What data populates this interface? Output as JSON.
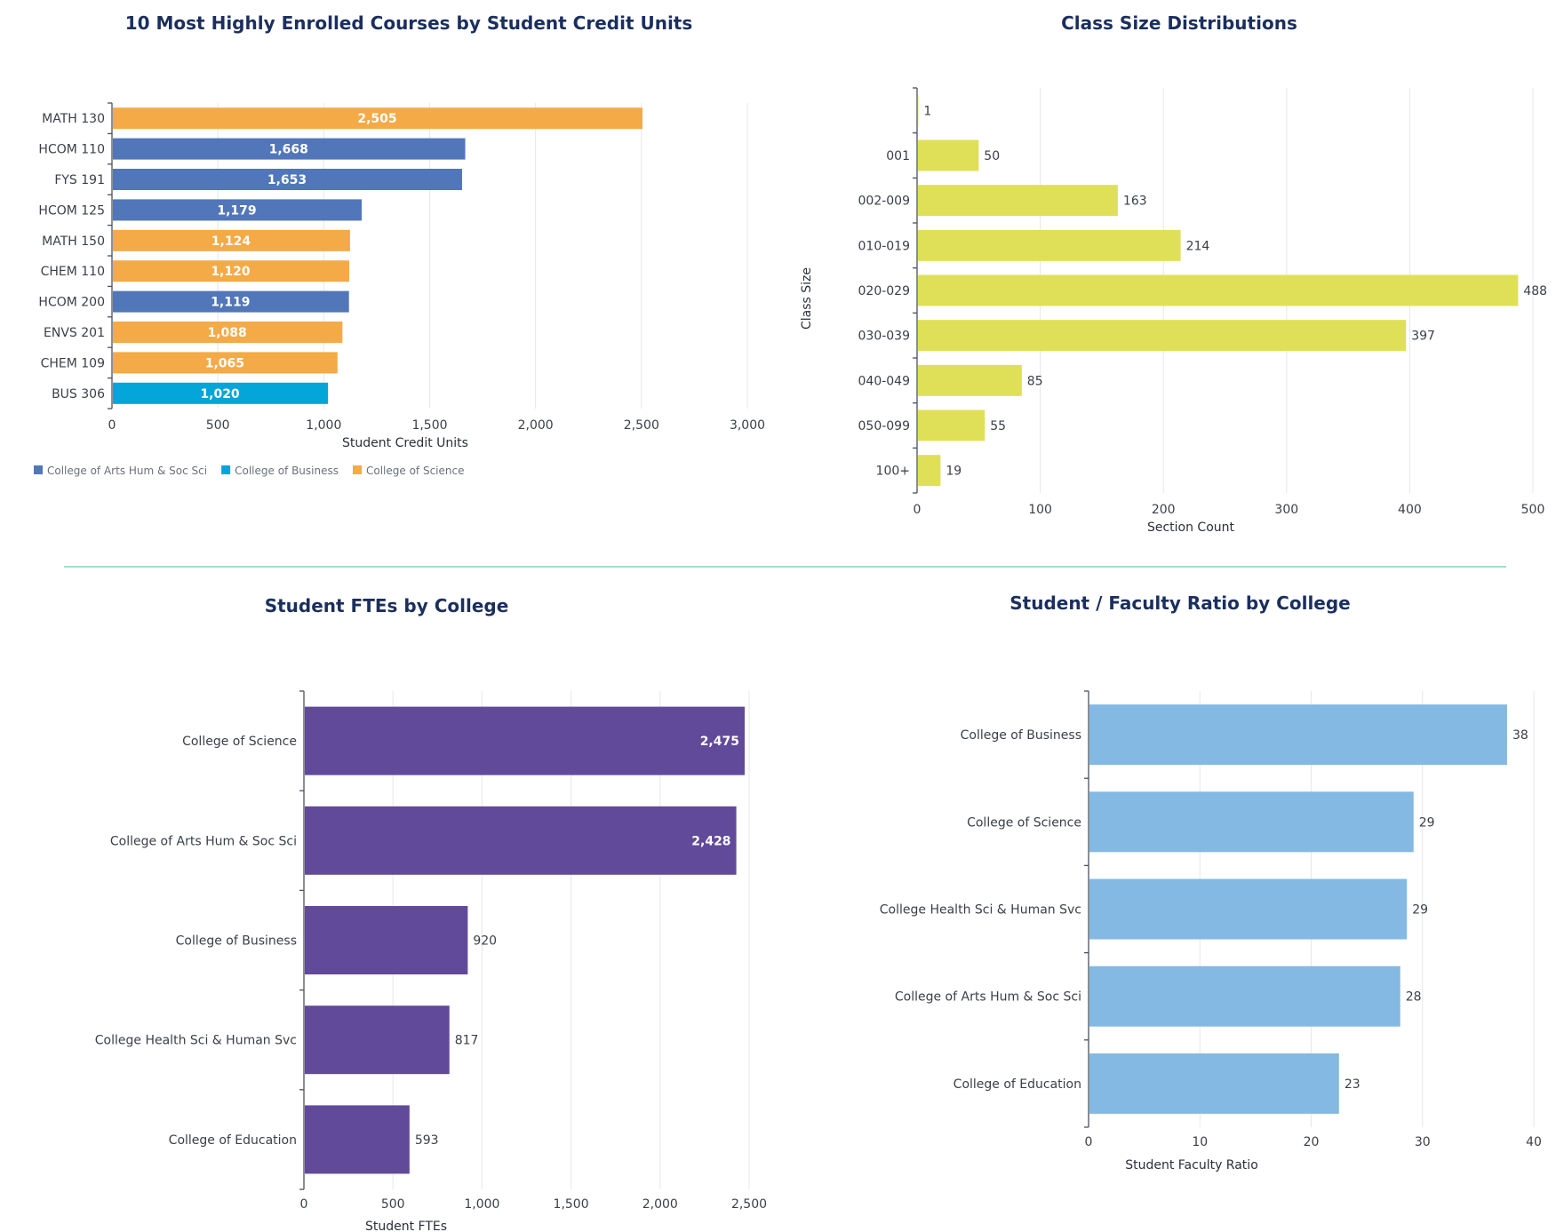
{
  "chart_data": [
    {
      "type": "bar",
      "orientation": "horizontal",
      "title": "10 Most Highly Enrolled Courses by Student Credit Units",
      "xlabel": "Student Credit Units",
      "ylabel": "",
      "xlim": [
        0,
        3000
      ],
      "xticks": [
        "0",
        "500",
        "1,000",
        "1,500",
        "2,000",
        "2,500",
        "3,000"
      ],
      "grid": true,
      "categories": [
        "MATH 130",
        "HCOM 110",
        "FYS 191",
        "HCOM 125",
        "MATH 150",
        "CHEM 110",
        "HCOM 200",
        "ENVS 201",
        "CHEM 109",
        "BUS 306"
      ],
      "values": [
        2505,
        1668,
        1653,
        1179,
        1124,
        1120,
        1119,
        1088,
        1065,
        1020
      ],
      "labels": [
        "2,505",
        "1,668",
        "1,653",
        "1,179",
        "1,124",
        "1,120",
        "1,119",
        "1,088",
        "1,065",
        "1,020"
      ],
      "groups": [
        "College of Science",
        "College of Arts Hum & Soc Sci",
        "College of Arts Hum & Soc Sci",
        "College of Arts Hum & Soc Sci",
        "College of Science",
        "College of Science",
        "College of Arts Hum & Soc Sci",
        "College of Science",
        "College of Science",
        "College of Business"
      ],
      "legend": {
        "placement": "bottom-left",
        "entries": [
          {
            "name": "College of Arts Hum & Soc Sci",
            "color": "#5176b9"
          },
          {
            "name": "College of Business",
            "color": "#04a5d8"
          },
          {
            "name": "College of Science",
            "color": "#f4aa47"
          }
        ]
      }
    },
    {
      "type": "bar",
      "orientation": "horizontal",
      "title": "Class Size Distributions",
      "xlabel": "Section Count",
      "ylabel": "Class Size",
      "xlim": [
        0,
        500
      ],
      "xticks": [
        "0",
        "100",
        "200",
        "300",
        "400",
        "500"
      ],
      "grid": true,
      "categories": [
        "",
        "001",
        "002-009",
        "010-019",
        "020-029",
        "030-039",
        "040-049",
        "050-099",
        "100+"
      ],
      "values": [
        1,
        50,
        163,
        214,
        488,
        397,
        85,
        55,
        19
      ],
      "labels": [
        "1",
        "50",
        "163",
        "214",
        "488",
        "397",
        "85",
        "55",
        "19"
      ],
      "color": "#dfe057"
    },
    {
      "type": "bar",
      "orientation": "horizontal",
      "title": "Student FTEs by College",
      "xlabel": "Student FTEs",
      "ylabel": "",
      "xlim": [
        0,
        2500
      ],
      "xticks": [
        "0",
        "500",
        "1,000",
        "1,500",
        "2,000",
        "2,500"
      ],
      "grid": true,
      "categories": [
        "College of Science",
        "College of Arts Hum & Soc Sci",
        "College of Business",
        "College Health Sci & Human Svc",
        "College of Education"
      ],
      "values": [
        2475,
        2428,
        920,
        817,
        593
      ],
      "labels": [
        "2,475",
        "2,428",
        "920",
        "817",
        "593"
      ],
      "color": "#614a9a"
    },
    {
      "type": "bar",
      "orientation": "horizontal",
      "title": "Student / Faculty Ratio by College",
      "xlabel": "Student Faculty Ratio",
      "ylabel": "",
      "xlim": [
        0,
        40
      ],
      "xticks": [
        "0",
        "10",
        "20",
        "30",
        "40"
      ],
      "grid": true,
      "categories": [
        "College of Business",
        "College of Science",
        "College Health Sci & Human Svc",
        "College of Arts Hum & Soc Sci",
        "College of Education"
      ],
      "values": [
        37.6,
        29.2,
        28.6,
        28.0,
        22.5
      ],
      "labels": [
        "38",
        "29",
        "29",
        "28",
        "23"
      ],
      "color": "#83b9e3"
    }
  ],
  "divider_color": "#3cc08a"
}
